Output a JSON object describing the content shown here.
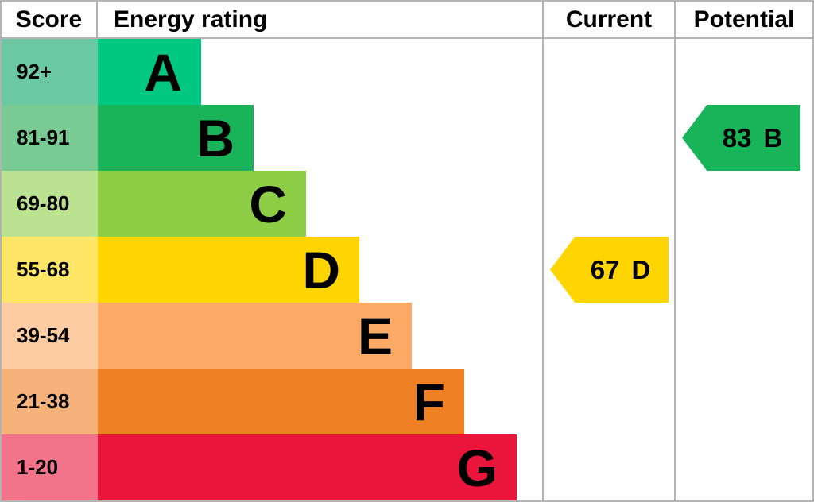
{
  "headers": {
    "score": "Score",
    "rating": "Energy rating",
    "current": "Current",
    "potential": "Potential"
  },
  "colors": {
    "grid_border": "#b3b3b3",
    "text": "#000000"
  },
  "chart_data": {
    "type": "bar",
    "title": "Energy rating",
    "categories": [
      "A",
      "B",
      "C",
      "D",
      "E",
      "F",
      "G"
    ],
    "score_ranges": [
      "92+",
      "81-91",
      "69-80",
      "55-68",
      "39-54",
      "21-38",
      "1-20"
    ],
    "legend_position": "none",
    "grid": "off",
    "bands": [
      {
        "letter": "A",
        "range": "92+",
        "color": "#00c781",
        "tint": "#6cc8a2"
      },
      {
        "letter": "B",
        "range": "81-91",
        "color": "#19b459",
        "tint": "#79ca93"
      },
      {
        "letter": "C",
        "range": "69-80",
        "color": "#8dce46",
        "tint": "#bbe290"
      },
      {
        "letter": "D",
        "range": "55-68",
        "color": "#ffd500",
        "tint": "#ffe666"
      },
      {
        "letter": "E",
        "range": "39-54",
        "color": "#fcaa65",
        "tint": "#fdcca3"
      },
      {
        "letter": "F",
        "range": "21-38",
        "color": "#ef8023",
        "tint": "#f5b37b"
      },
      {
        "letter": "G",
        "range": "1-20",
        "color": "#e9153b",
        "tint": "#f2738a"
      }
    ],
    "markers": {
      "current": {
        "value": 67,
        "band": "D",
        "band_index": 3,
        "color": "#ffd500"
      },
      "potential": {
        "value": 83,
        "band": "B",
        "band_index": 1,
        "color": "#19b459"
      }
    }
  }
}
